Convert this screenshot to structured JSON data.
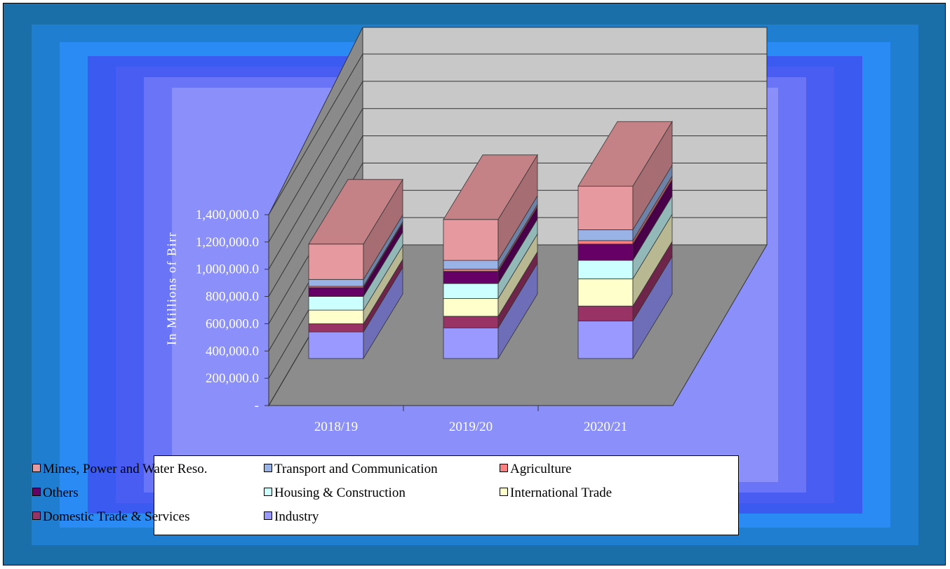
{
  "chart_data": {
    "type": "bar",
    "subtype": "stacked-3d",
    "title": "",
    "xlabel": "",
    "ylabel": "In Millions of Birr",
    "ylim": [
      0,
      1400000
    ],
    "y_ticks": [
      "-",
      "200,000.0",
      "400,000.0",
      "600,000.0",
      "800,000.0",
      "1,000,000.0",
      "1,200,000.0",
      "1,400,000.0"
    ],
    "categories": [
      "2018/19",
      "2019/20",
      "2020/21"
    ],
    "legend_position": "bottom",
    "series": [
      {
        "name": "Industry",
        "color": "#9999ff",
        "values": [
          195000,
          225000,
          275000
        ]
      },
      {
        "name": "Domestic Trade & Services",
        "color": "#993366",
        "values": [
          60000,
          85000,
          110000
        ]
      },
      {
        "name": "International Trade",
        "color": "#ffffcc",
        "values": [
          100000,
          130000,
          200000
        ]
      },
      {
        "name": "Housing & Construction",
        "color": "#ccffff",
        "values": [
          100000,
          110000,
          135000
        ]
      },
      {
        "name": "Others",
        "color": "#660066",
        "values": [
          65000,
          90000,
          120000
        ]
      },
      {
        "name": "Agriculture",
        "color": "#ff8080",
        "values": [
          10000,
          15000,
          25000
        ]
      },
      {
        "name": "Transport and Communication",
        "color": "#99b3e6",
        "values": [
          50000,
          65000,
          80000
        ]
      },
      {
        "name": "Mines, Power and Water Reso.",
        "color": "#e6999f",
        "values": [
          260000,
          300000,
          320000
        ]
      }
    ]
  },
  "legend": {
    "items": [
      {
        "label": "Mines, Power and Water Reso.",
        "color": "#e6999f"
      },
      {
        "label": "Transport and Communication",
        "color": "#99b3e6"
      },
      {
        "label": "Agriculture",
        "color": "#ff8080"
      },
      {
        "label": "Others",
        "color": "#660066"
      },
      {
        "label": "Housing & Construction",
        "color": "#ccffff"
      },
      {
        "label": "International Trade",
        "color": "#ffffcc"
      },
      {
        "label": "Domestic Trade & Services",
        "color": "#993366"
      },
      {
        "label": "Industry",
        "color": "#9999ff"
      }
    ]
  }
}
